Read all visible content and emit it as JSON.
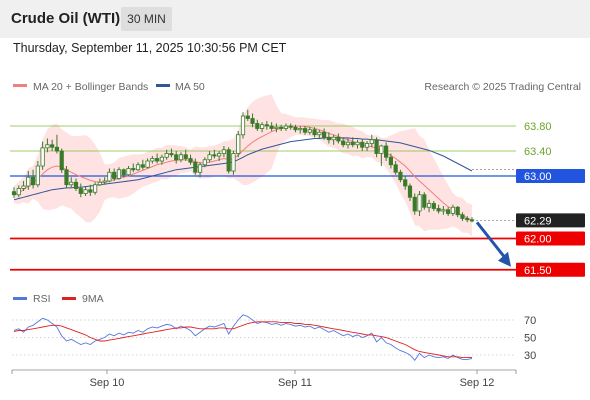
{
  "header": {
    "title": "Crude Oil (WTI)",
    "timeframe": "30 MIN"
  },
  "datetime": "Thursday, September 11, 2025 10:30:56 PM CET",
  "legend_top": {
    "ma20": "MA 20 + Bollinger Bands",
    "ma50": "MA 50",
    "credit": "Research © 2025 Trading Central"
  },
  "legend_bottom": {
    "rsi": "RSI",
    "ma9": "9MA"
  },
  "colors": {
    "candle": "#3a7a2a",
    "ma20": "#f08080",
    "ma50": "#335599",
    "band": "#ffd8d8",
    "green_level": "#7cbf3a",
    "blue_level": "#2255dd",
    "red_level": "#ee0000",
    "rsi": "#5577dd",
    "rsi_ma": "#dd2222",
    "arrow": "#2255aa"
  },
  "chart_data": [
    {
      "type": "candlestick",
      "name_shown": "Crude Oil (WTI)",
      "timeframe": "30 MIN",
      "xaxis_labels": [
        "Sep 10",
        "Sep 11",
        "Sep 12"
      ],
      "price_range": [
        61.2,
        64.2
      ],
      "levels": [
        {
          "value": 63.8,
          "label": "63.80",
          "kind": "resistance"
        },
        {
          "value": 63.4,
          "label": "63.40",
          "kind": "resistance"
        },
        {
          "value": 63.0,
          "label": "63.00",
          "kind": "pivot"
        },
        {
          "value": 62.29,
          "label": "62.29",
          "kind": "last"
        },
        {
          "value": 62.0,
          "label": "62.00",
          "kind": "support"
        },
        {
          "value": 61.5,
          "label": "61.50",
          "kind": "support"
        }
      ],
      "ohlc": [
        [
          62.75,
          62.82,
          62.65,
          62.7
        ],
        [
          62.7,
          62.85,
          62.66,
          62.8
        ],
        [
          62.8,
          62.92,
          62.76,
          62.84
        ],
        [
          62.84,
          63.08,
          62.78,
          62.98
        ],
        [
          62.98,
          63.1,
          62.8,
          62.86
        ],
        [
          62.86,
          63.24,
          62.82,
          63.16
        ],
        [
          63.16,
          63.55,
          63.1,
          63.45
        ],
        [
          63.45,
          63.6,
          63.38,
          63.5
        ],
        [
          63.5,
          63.58,
          63.4,
          63.46
        ],
        [
          63.46,
          63.66,
          63.36,
          63.4
        ],
        [
          63.4,
          63.44,
          63.05,
          63.1
        ],
        [
          63.1,
          63.16,
          62.8,
          62.86
        ],
        [
          62.86,
          62.98,
          62.82,
          62.9
        ],
        [
          62.9,
          62.96,
          62.76,
          62.8
        ],
        [
          62.8,
          62.88,
          62.66,
          62.72
        ],
        [
          62.72,
          62.84,
          62.68,
          62.78
        ],
        [
          62.78,
          62.86,
          62.68,
          62.74
        ],
        [
          62.74,
          62.9,
          62.7,
          62.86
        ],
        [
          62.86,
          62.96,
          62.84,
          62.9
        ],
        [
          62.9,
          62.98,
          62.86,
          62.92
        ],
        [
          62.92,
          63.12,
          62.9,
          63.06
        ],
        [
          63.06,
          63.12,
          62.92,
          62.96
        ],
        [
          62.96,
          63.14,
          62.94,
          63.1
        ],
        [
          63.1,
          63.12,
          62.98,
          63.02
        ],
        [
          63.02,
          63.16,
          63.0,
          63.12
        ],
        [
          63.12,
          63.2,
          63.06,
          63.1
        ],
        [
          63.1,
          63.22,
          63.08,
          63.18
        ],
        [
          63.18,
          63.26,
          63.1,
          63.14
        ],
        [
          63.14,
          63.28,
          63.12,
          63.24
        ],
        [
          63.24,
          63.32,
          63.2,
          63.28
        ],
        [
          63.28,
          63.36,
          63.2,
          63.24
        ],
        [
          63.24,
          63.34,
          63.18,
          63.3
        ],
        [
          63.3,
          63.42,
          63.26,
          63.36
        ],
        [
          63.36,
          63.44,
          63.3,
          63.34
        ],
        [
          63.34,
          63.4,
          63.2,
          63.26
        ],
        [
          63.26,
          63.38,
          63.22,
          63.34
        ],
        [
          63.34,
          63.42,
          63.24,
          63.28
        ],
        [
          63.28,
          63.34,
          63.18,
          63.22
        ],
        [
          63.22,
          63.28,
          63.02,
          63.06
        ],
        [
          63.06,
          63.22,
          62.98,
          63.18
        ],
        [
          63.18,
          63.3,
          63.14,
          63.26
        ],
        [
          63.26,
          63.4,
          63.22,
          63.34
        ],
        [
          63.34,
          63.42,
          63.28,
          63.32
        ],
        [
          63.32,
          63.4,
          63.24,
          63.36
        ],
        [
          63.36,
          63.48,
          63.3,
          63.42
        ],
        [
          63.42,
          63.46,
          63.04,
          63.08
        ],
        [
          63.08,
          63.4,
          63.02,
          63.36
        ],
        [
          63.36,
          63.72,
          63.3,
          63.66
        ],
        [
          63.66,
          64.02,
          63.6,
          63.96
        ],
        [
          63.96,
          64.06,
          63.88,
          63.92
        ],
        [
          63.92,
          64.0,
          63.78,
          63.84
        ],
        [
          63.84,
          63.9,
          63.72,
          63.76
        ],
        [
          63.76,
          63.86,
          63.7,
          63.82
        ],
        [
          63.82,
          63.88,
          63.74,
          63.8
        ],
        [
          63.8,
          63.86,
          63.72,
          63.76
        ],
        [
          63.76,
          63.84,
          63.7,
          63.78
        ],
        [
          63.78,
          63.82,
          63.72,
          63.76
        ],
        [
          63.76,
          63.84,
          63.72,
          63.8
        ],
        [
          63.8,
          63.84,
          63.74,
          63.78
        ],
        [
          63.78,
          63.82,
          63.7,
          63.74
        ],
        [
          63.74,
          63.8,
          63.68,
          63.76
        ],
        [
          63.76,
          63.8,
          63.66,
          63.7
        ],
        [
          63.7,
          63.78,
          63.66,
          63.74
        ],
        [
          63.74,
          63.78,
          63.62,
          63.66
        ],
        [
          63.66,
          63.74,
          63.6,
          63.7
        ],
        [
          63.7,
          63.76,
          63.58,
          63.62
        ],
        [
          63.62,
          63.7,
          63.52,
          63.58
        ],
        [
          63.58,
          63.66,
          63.5,
          63.62
        ],
        [
          63.62,
          63.68,
          63.52,
          63.56
        ],
        [
          63.56,
          63.62,
          63.46,
          63.5
        ],
        [
          63.5,
          63.6,
          63.44,
          63.54
        ],
        [
          63.54,
          63.62,
          63.46,
          63.5
        ],
        [
          63.5,
          63.58,
          63.44,
          63.54
        ],
        [
          63.54,
          63.6,
          63.4,
          63.46
        ],
        [
          63.46,
          63.56,
          63.4,
          63.52
        ],
        [
          63.52,
          63.66,
          63.46,
          63.58
        ],
        [
          63.58,
          63.62,
          63.3,
          63.36
        ],
        [
          63.36,
          63.5,
          63.16,
          63.48
        ],
        [
          63.48,
          63.54,
          63.24,
          63.3
        ],
        [
          63.3,
          63.36,
          63.12,
          63.18
        ],
        [
          63.18,
          63.24,
          63.02,
          63.06
        ],
        [
          63.06,
          63.1,
          62.9,
          62.94
        ],
        [
          62.94,
          63.0,
          62.78,
          62.84
        ],
        [
          62.84,
          62.88,
          62.6,
          62.66
        ],
        [
          62.66,
          62.72,
          62.38,
          62.44
        ],
        [
          62.44,
          62.76,
          62.36,
          62.7
        ],
        [
          62.7,
          62.74,
          62.46,
          62.5
        ],
        [
          62.5,
          62.62,
          62.42,
          62.56
        ],
        [
          62.56,
          62.6,
          62.44,
          62.48
        ],
        [
          62.48,
          62.54,
          62.4,
          62.44
        ],
        [
          62.44,
          62.52,
          62.38,
          62.46
        ],
        [
          62.46,
          62.5,
          62.36,
          62.4
        ],
        [
          62.4,
          62.54,
          62.36,
          62.5
        ],
        [
          62.5,
          62.52,
          62.34,
          62.38
        ],
        [
          62.38,
          62.42,
          62.28,
          62.32
        ],
        [
          62.32,
          62.36,
          62.26,
          62.3
        ],
        [
          62.3,
          62.34,
          62.26,
          62.29
        ]
      ],
      "ma20": [
        62.7,
        62.73,
        62.78,
        62.84,
        62.9,
        62.96,
        63.03,
        63.1,
        63.14,
        63.16,
        63.14,
        63.1,
        63.06,
        63.02,
        62.99,
        62.96,
        62.93,
        62.91,
        62.9,
        62.9,
        62.92,
        62.94,
        62.96,
        62.98,
        63.0,
        63.03,
        63.06,
        63.09,
        63.12,
        63.15,
        63.18,
        63.2,
        63.22,
        63.24,
        63.25,
        63.26,
        63.26,
        63.25,
        63.23,
        63.21,
        63.21,
        63.22,
        63.24,
        63.26,
        63.28,
        63.26,
        63.28,
        63.33,
        63.41,
        63.48,
        63.54,
        63.59,
        63.63,
        63.67,
        63.71,
        63.74,
        63.76,
        63.78,
        63.79,
        63.8,
        63.8,
        63.79,
        63.78,
        63.76,
        63.74,
        63.71,
        63.68,
        63.66,
        63.63,
        63.6,
        63.58,
        63.55,
        63.53,
        63.5,
        63.48,
        63.47,
        63.44,
        63.41,
        63.37,
        63.33,
        63.28,
        63.22,
        63.16,
        63.08,
        62.99,
        62.92,
        62.85,
        62.78,
        62.71,
        62.64,
        62.57,
        62.51,
        62.46,
        62.41,
        62.37,
        62.33,
        62.29
      ],
      "ma50": [
        62.62,
        62.64,
        62.66,
        62.68,
        62.7,
        62.72,
        62.74,
        62.76,
        62.78,
        62.79,
        62.8,
        62.81,
        62.81,
        62.82,
        62.82,
        62.83,
        62.84,
        62.85,
        62.86,
        62.87,
        62.88,
        62.89,
        62.9,
        62.91,
        62.92,
        62.93,
        62.94,
        62.96,
        62.98,
        63.0,
        63.02,
        63.04,
        63.06,
        63.08,
        63.1,
        63.11,
        63.12,
        63.13,
        63.14,
        63.15,
        63.16,
        63.17,
        63.18,
        63.19,
        63.2,
        63.21,
        63.23,
        63.26,
        63.3,
        63.34,
        63.37,
        63.4,
        63.43,
        63.45,
        63.47,
        63.49,
        63.51,
        63.53,
        63.55,
        63.56,
        63.57,
        63.58,
        63.59,
        63.6,
        63.6,
        63.61,
        63.61,
        63.61,
        63.61,
        63.61,
        63.61,
        63.6,
        63.6,
        63.59,
        63.59,
        63.58,
        63.58,
        63.57,
        63.56,
        63.55,
        63.54,
        63.53,
        63.51,
        63.49,
        63.47,
        63.45,
        63.43,
        63.41,
        63.38,
        63.35,
        63.32,
        63.28,
        63.24,
        63.2,
        63.16,
        63.12,
        63.08
      ]
    },
    {
      "type": "line",
      "name_shown": "RSI",
      "ylim": [
        15,
        80
      ],
      "ticks": [
        70,
        50,
        30
      ],
      "series": [
        {
          "name": "RSI",
          "values": [
            58,
            60,
            56,
            62,
            64,
            68,
            72,
            70,
            66,
            62,
            52,
            46,
            48,
            45,
            42,
            44,
            42,
            46,
            48,
            50,
            54,
            52,
            55,
            53,
            56,
            55,
            58,
            56,
            60,
            62,
            61,
            63,
            65,
            64,
            60,
            63,
            61,
            58,
            52,
            56,
            60,
            63,
            62,
            64,
            66,
            54,
            63,
            70,
            76,
            74,
            70,
            66,
            68,
            67,
            65,
            66,
            64,
            66,
            65,
            63,
            64,
            62,
            63,
            60,
            62,
            59,
            56,
            58,
            55,
            52,
            54,
            51,
            53,
            50,
            52,
            55,
            45,
            50,
            44,
            42,
            38,
            35,
            33,
            30,
            24,
            32,
            27,
            30,
            28,
            27,
            28,
            26,
            30,
            27,
            25,
            25,
            26
          ]
        },
        {
          "name": "9MA",
          "values": [
            57,
            58,
            58,
            59,
            60,
            61,
            62,
            63,
            64,
            64,
            63,
            61,
            59,
            57,
            55,
            53,
            50,
            48,
            46,
            46,
            47,
            48,
            49,
            50,
            51,
            52,
            53,
            54,
            55,
            56,
            57,
            58,
            59,
            60,
            61,
            61,
            62,
            62,
            61,
            60,
            60,
            60,
            60,
            61,
            61,
            60,
            60,
            62,
            64,
            66,
            67,
            68,
            68,
            68,
            68,
            68,
            67,
            67,
            67,
            66,
            66,
            65,
            65,
            64,
            63,
            62,
            61,
            60,
            59,
            58,
            57,
            56,
            55,
            54,
            53,
            53,
            52,
            51,
            50,
            48,
            46,
            44,
            42,
            39,
            36,
            34,
            33,
            32,
            31,
            30,
            29,
            28,
            28,
            28,
            27,
            27,
            27
          ]
        }
      ]
    }
  ]
}
